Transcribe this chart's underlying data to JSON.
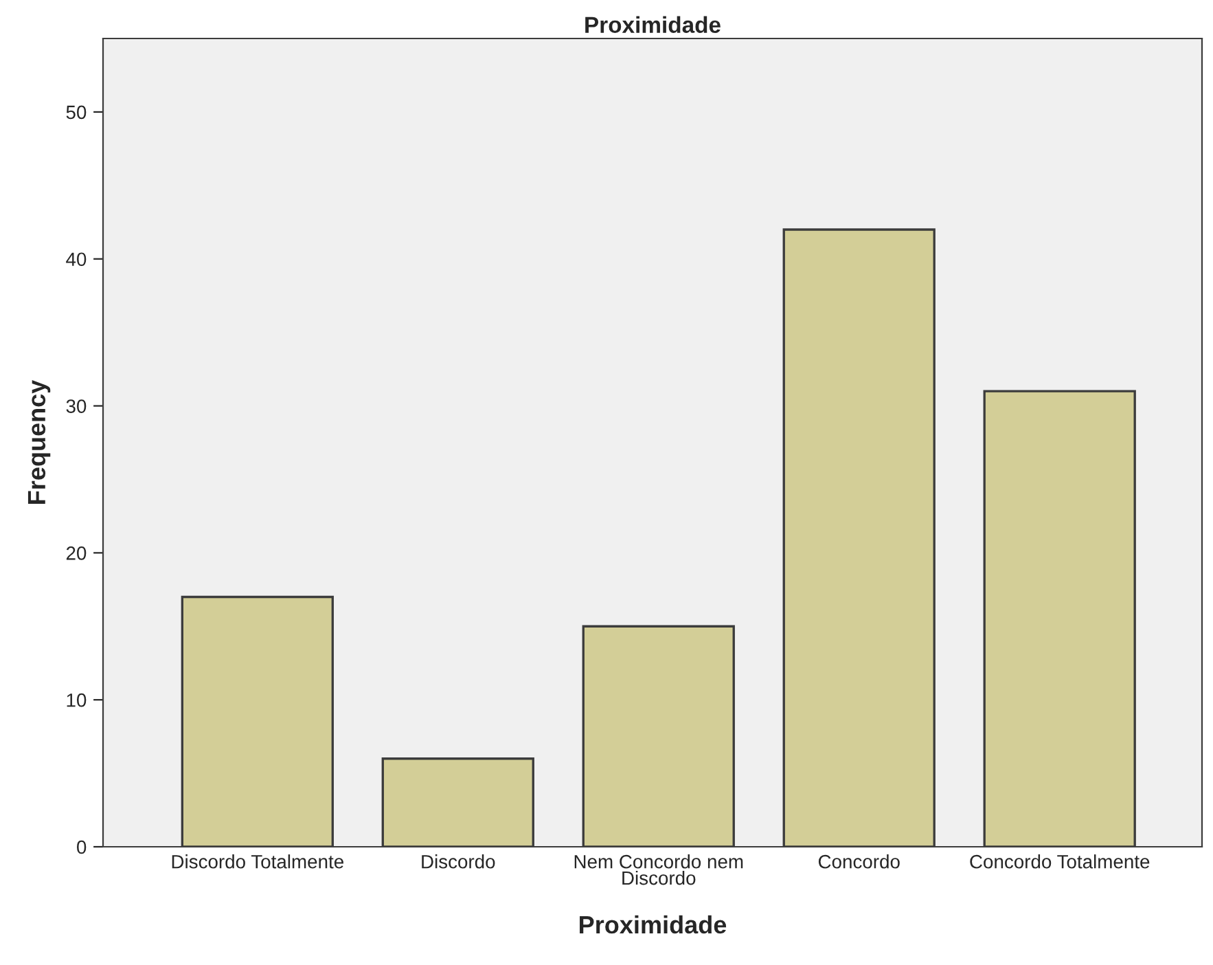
{
  "chart_data": {
    "type": "bar",
    "title": "Proximidade",
    "xlabel": "Proximidade",
    "ylabel": "Frequency",
    "categories": [
      "Discordo Totalmente",
      "Discordo",
      "Nem Concordo nem\nDiscordo",
      "Concordo",
      "Concordo Totalmente"
    ],
    "values": [
      17,
      6,
      15,
      42,
      31
    ],
    "color": "#d3ce97",
    "ylim": [
      0,
      55
    ],
    "yticks": [
      0,
      10,
      20,
      30,
      40,
      50
    ],
    "grid": false
  }
}
